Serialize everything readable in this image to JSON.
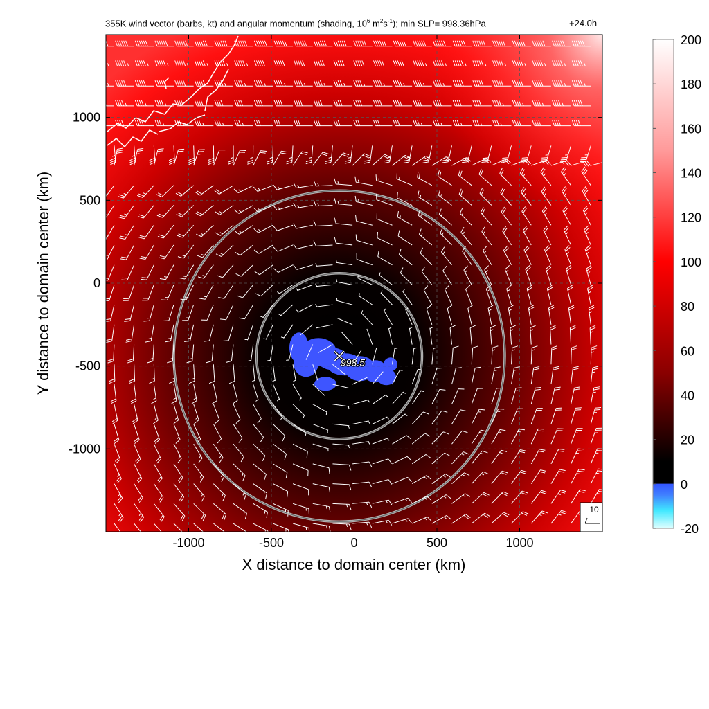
{
  "title": {
    "text_a": "355K wind vector (barbs, kt) and angular momentum (shading, 10",
    "exp1": "6",
    "text_b": " m",
    "exp2": "2",
    "text_c": "s",
    "exp3": "-1",
    "text_d": "); min SLP= 998.36hPa",
    "valid_time": "+24.0h"
  },
  "chart_data": {
    "type": "heatmap",
    "xlabel": "X distance to domain center (km)",
    "ylabel": "Y distance to domain center (km)",
    "xlim": [
      -1500,
      1500
    ],
    "ylim": [
      -1500,
      1500
    ],
    "x_ticks": [
      -1000,
      -500,
      0,
      500,
      1000
    ],
    "x_tick_labels": [
      "-1000",
      "-500",
      "0",
      "500",
      "1000"
    ],
    "y_ticks": [
      -1000,
      -500,
      0,
      500,
      1000
    ],
    "y_tick_labels": [
      "-1000",
      "-500",
      "0",
      "500",
      "1000"
    ],
    "grid": true,
    "colorbar": {
      "range": [
        -20,
        200
      ],
      "ticks": [
        -20,
        0,
        20,
        40,
        60,
        80,
        100,
        120,
        140,
        160,
        180,
        200
      ],
      "tick_labels": [
        "-20",
        "0",
        "20",
        "40",
        "60",
        "80",
        "100",
        "120",
        "140",
        "160",
        "180",
        "200"
      ],
      "stops": [
        {
          "value": -20,
          "color": "#e0ffff"
        },
        {
          "value": -12,
          "color": "#40e8ff"
        },
        {
          "value": -5,
          "color": "#4080ff"
        },
        {
          "value": 0,
          "color": "#3355ff"
        },
        {
          "value": 0.1,
          "color": "#000000"
        },
        {
          "value": 10,
          "color": "#000000"
        },
        {
          "value": 50,
          "color": "#8a0000"
        },
        {
          "value": 100,
          "color": "#ff0000"
        },
        {
          "value": 150,
          "color": "#ff9a9a"
        },
        {
          "value": 200,
          "color": "#ffffff"
        }
      ]
    },
    "center": {
      "x": -90,
      "y": -440,
      "label": "998.5",
      "marker": "x"
    },
    "range_rings_km": [
      500,
      1000
    ],
    "negative_region_color": "#3e55ff",
    "coastline_color": "#ffffff",
    "barb_color": "#ffffff",
    "reference_barb": {
      "label": "10",
      "speed_kt": 10,
      "direction_deg": 270
    },
    "min_slp_hPa": 998.36
  }
}
